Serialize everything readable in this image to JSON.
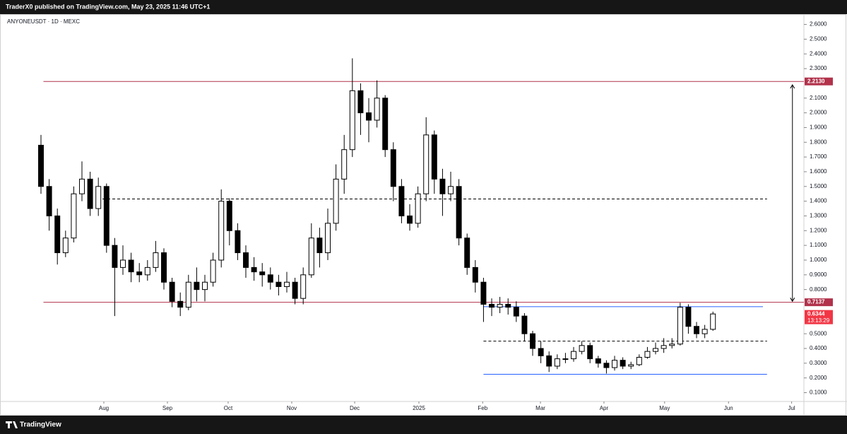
{
  "header": {
    "text": "TraderX0 published on TradingView.com, May 23, 2025 11:46 UTC+1"
  },
  "footer": {
    "brand": "TradingView"
  },
  "chart_data": {
    "type": "candlestick",
    "title": "ANYONEUSDT · 1D · MEXC",
    "up_color": "#ffffff",
    "down_color": "#000000",
    "outline_color": "#000000",
    "categories": [
      null,
      null,
      null,
      null,
      null,
      null,
      null,
      null,
      null,
      null,
      null,
      null,
      null,
      null,
      null,
      null,
      null,
      null,
      null,
      null,
      null,
      null,
      null,
      null,
      null,
      null,
      null,
      null,
      null,
      null,
      null,
      null,
      null,
      null,
      null,
      null,
      null,
      null,
      null,
      null,
      null,
      null,
      null,
      null,
      null,
      null,
      null,
      null,
      null,
      null,
      null,
      null,
      null,
      null,
      null,
      null,
      null,
      null,
      null,
      null,
      null,
      null,
      null,
      null,
      null,
      null,
      null,
      null,
      null,
      null,
      null,
      null,
      null,
      null,
      null,
      null,
      null,
      null,
      null,
      null,
      null,
      null,
      null
    ],
    "open": [
      1.78,
      1.5,
      1.3,
      1.05,
      1.15,
      1.45,
      1.55,
      1.35,
      1.5,
      1.1,
      0.95,
      1.0,
      0.92,
      0.9,
      0.95,
      1.05,
      0.85,
      0.72,
      0.68,
      0.85,
      0.8,
      0.85,
      1.0,
      1.4,
      1.2,
      1.05,
      0.95,
      0.92,
      0.9,
      0.85,
      0.82,
      0.85,
      0.74,
      0.9,
      1.15,
      1.05,
      1.25,
      1.55,
      1.75,
      2.15,
      2.0,
      1.95,
      2.1,
      1.75,
      1.5,
      1.3,
      1.25,
      1.45,
      1.85,
      1.55,
      1.45,
      1.5,
      1.15,
      0.95,
      0.85,
      0.7,
      0.68,
      0.7,
      0.68,
      0.62,
      0.5,
      0.4,
      0.35,
      0.28,
      0.33,
      0.33,
      0.38,
      0.42,
      0.33,
      0.3,
      0.27,
      0.32,
      0.28,
      0.29,
      0.34,
      0.38,
      0.4,
      0.42,
      0.43,
      0.68,
      0.55,
      0.5,
      0.53
    ],
    "high": [
      1.85,
      1.55,
      1.35,
      1.2,
      1.5,
      1.67,
      1.6,
      1.56,
      1.52,
      1.15,
      1.1,
      1.05,
      0.98,
      1.0,
      1.13,
      1.08,
      0.88,
      0.78,
      0.9,
      0.95,
      0.9,
      1.05,
      1.48,
      1.42,
      1.25,
      1.1,
      1.02,
      0.98,
      0.95,
      0.9,
      0.92,
      0.88,
      0.95,
      1.25,
      1.22,
      1.35,
      1.65,
      1.85,
      2.37,
      2.2,
      2.1,
      2.22,
      2.12,
      1.8,
      1.55,
      1.38,
      1.5,
      1.97,
      1.88,
      1.62,
      1.6,
      1.55,
      1.18,
      1.0,
      0.88,
      0.74,
      0.75,
      0.74,
      0.72,
      0.64,
      0.52,
      0.45,
      0.38,
      0.36,
      0.37,
      0.41,
      0.45,
      0.44,
      0.35,
      0.32,
      0.35,
      0.34,
      0.31,
      0.36,
      0.41,
      0.44,
      0.47,
      0.47,
      0.71,
      0.7,
      0.58,
      0.56,
      0.65
    ],
    "low": [
      1.45,
      1.2,
      0.97,
      1.02,
      1.12,
      1.4,
      1.3,
      1.3,
      1.05,
      0.62,
      0.9,
      0.85,
      0.85,
      0.86,
      0.92,
      0.8,
      0.68,
      0.62,
      0.66,
      0.72,
      0.72,
      0.82,
      0.95,
      1.1,
      1.0,
      0.88,
      0.86,
      0.82,
      0.8,
      0.76,
      0.78,
      0.7,
      0.7,
      0.88,
      0.95,
      1.0,
      1.2,
      1.45,
      1.7,
      1.85,
      1.8,
      1.9,
      1.7,
      1.4,
      1.25,
      1.2,
      1.22,
      1.4,
      1.45,
      1.3,
      1.4,
      1.1,
      0.9,
      0.78,
      0.58,
      0.62,
      0.64,
      0.63,
      0.58,
      0.45,
      0.35,
      0.3,
      0.24,
      0.26,
      0.3,
      0.31,
      0.36,
      0.3,
      0.27,
      0.23,
      0.25,
      0.26,
      0.26,
      0.28,
      0.33,
      0.36,
      0.37,
      0.4,
      0.42,
      0.5,
      0.47,
      0.47,
      0.52
    ],
    "close": [
      1.5,
      1.3,
      1.05,
      1.15,
      1.45,
      1.55,
      1.35,
      1.5,
      1.1,
      0.95,
      1.0,
      0.92,
      0.9,
      0.95,
      1.05,
      0.85,
      0.72,
      0.68,
      0.85,
      0.8,
      0.85,
      1.0,
      1.4,
      1.2,
      1.05,
      0.95,
      0.92,
      0.9,
      0.85,
      0.82,
      0.85,
      0.74,
      0.9,
      1.15,
      1.05,
      1.25,
      1.55,
      1.75,
      2.15,
      2.0,
      1.95,
      2.1,
      1.75,
      1.5,
      1.3,
      1.25,
      1.45,
      1.85,
      1.55,
      1.45,
      1.5,
      1.15,
      0.95,
      0.85,
      0.7,
      0.68,
      0.7,
      0.68,
      0.62,
      0.5,
      0.4,
      0.35,
      0.28,
      0.33,
      0.33,
      0.38,
      0.42,
      0.33,
      0.3,
      0.27,
      0.32,
      0.28,
      0.29,
      0.34,
      0.38,
      0.4,
      0.42,
      0.43,
      0.68,
      0.55,
      0.5,
      0.53,
      0.6344
    ],
    "xlim": [
      -5,
      93.1
    ],
    "xticks": [
      {
        "value": 7.67,
        "label": "Aug"
      },
      {
        "value": 15.43,
        "label": "Sep"
      },
      {
        "value": 22.84,
        "label": "Oct"
      },
      {
        "value": 30.6,
        "label": "Nov"
      },
      {
        "value": 38.28,
        "label": "Dec"
      },
      {
        "value": 46.12,
        "label": "2025"
      },
      {
        "value": 53.9,
        "label": "Feb"
      },
      {
        "value": 60.95,
        "label": "Mar"
      },
      {
        "value": 68.7,
        "label": "Apr"
      },
      {
        "value": 76.1,
        "label": "May"
      },
      {
        "value": 83.9,
        "label": "Jun"
      },
      {
        "value": 91.6,
        "label": "Jul"
      }
    ],
    "ylim": [
      0.04,
      2.67
    ],
    "yticks": [
      {
        "value": 2.6,
        "label": "2.6000"
      },
      {
        "value": 2.5,
        "label": "2.5000"
      },
      {
        "value": 2.4,
        "label": "2.4000"
      },
      {
        "value": 2.3,
        "label": "2.3000"
      },
      {
        "value": 2.1,
        "label": "2.1000"
      },
      {
        "value": 2.0,
        "label": "2.0000"
      },
      {
        "value": 1.9,
        "label": "1.9000"
      },
      {
        "value": 1.8,
        "label": "1.8000"
      },
      {
        "value": 1.7,
        "label": "1.7000"
      },
      {
        "value": 1.6,
        "label": "1.6000"
      },
      {
        "value": 1.5,
        "label": "1.5000"
      },
      {
        "value": 1.4,
        "label": "1.4000"
      },
      {
        "value": 1.3,
        "label": "1.3000"
      },
      {
        "value": 1.2,
        "label": "1.2000"
      },
      {
        "value": 1.1,
        "label": "1.1000"
      },
      {
        "value": 1.0,
        "label": "1.0000"
      },
      {
        "value": 0.9,
        "label": "0.9000"
      },
      {
        "value": 0.8,
        "label": "0.8000"
      },
      {
        "value": 0.5,
        "label": "0.5000"
      },
      {
        "value": 0.4,
        "label": "0.4000"
      },
      {
        "value": 0.3,
        "label": "0.3000"
      },
      {
        "value": 0.2,
        "label": "0.2000"
      },
      {
        "value": 0.1,
        "label": "0.1000"
      }
    ],
    "hlines": [
      {
        "value": 2.213,
        "color": "#b2324b",
        "dashed": false,
        "from": 0.3,
        "to": 93.1
      },
      {
        "value": 0.7137,
        "color": "#b2324b",
        "dashed": false,
        "from": 0.3,
        "to": 93.1
      },
      {
        "value": 1.415,
        "color": "#000000",
        "dashed": true,
        "from": 7.5,
        "to": 88.6
      },
      {
        "value": 0.684,
        "color": "#2962ff",
        "dashed": false,
        "from": 54,
        "to": 88.1
      },
      {
        "value": 0.45,
        "color": "#000000",
        "dashed": true,
        "from": 54,
        "to": 88.6
      },
      {
        "value": 0.225,
        "color": "#2962ff",
        "dashed": false,
        "from": 54,
        "to": 88.6
      }
    ],
    "arrow": {
      "from": 2.19,
      "to": 0.72,
      "at": 91.7
    },
    "price_labels": [
      {
        "value": 2.213,
        "label": "2.2130",
        "color": "#b2324b"
      },
      {
        "value": 0.7137,
        "label": "0.7137",
        "color": "#b2324b"
      },
      {
        "value": 0.6344,
        "label": "0.6344",
        "color": "#f23645",
        "note": "13:13:29"
      }
    ]
  }
}
